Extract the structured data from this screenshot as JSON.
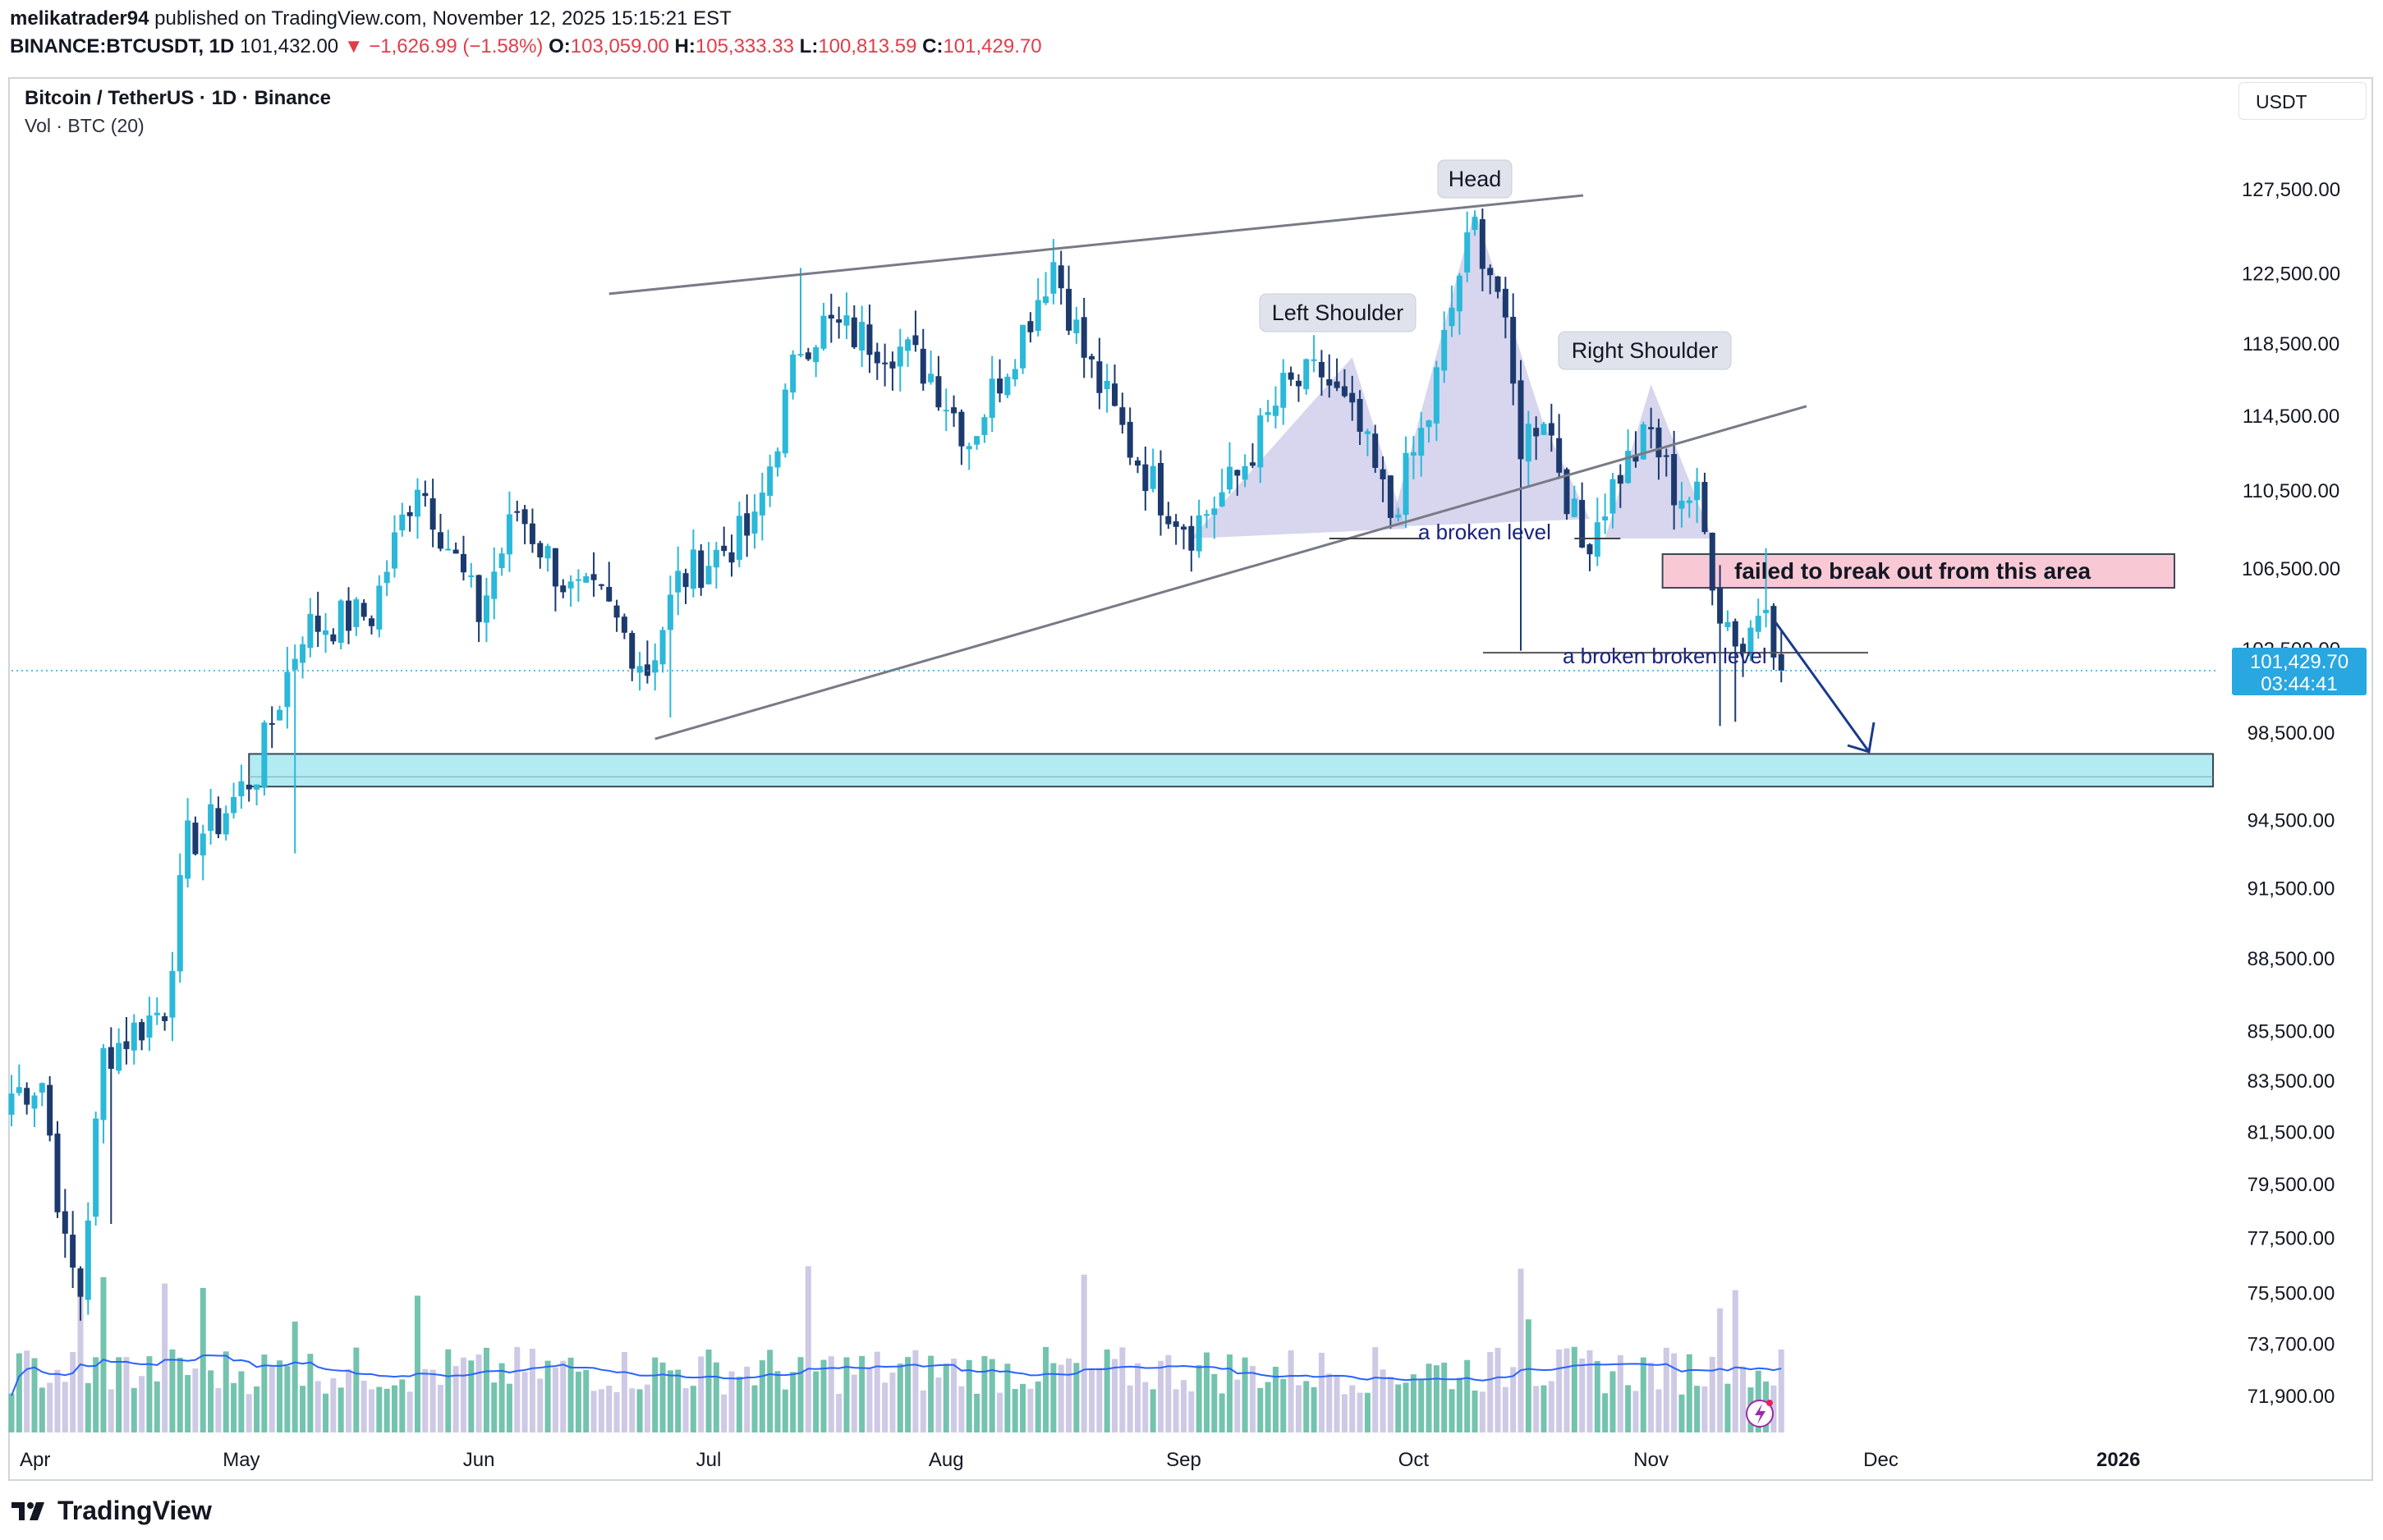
{
  "header": {
    "author": "melikatrader94",
    "published_text": "published on TradingView.com, November 12, 2025 15:15:21 EST",
    "symbol_line": "BINANCE:BTCUSDT, 1D",
    "last": "101,432.00",
    "change_arrow": "▼",
    "change": "−1,626.99 (−1.58%)",
    "o_label": "O:",
    "o_value": "103,059.00",
    "h_label": "H:",
    "h_value": "105,333.33",
    "l_label": "L:",
    "l_value": "100,813.59",
    "c_label": "C:",
    "c_value": "101,429.70"
  },
  "legend": {
    "title": "Bitcoin / TetherUS · 1D · Binance",
    "volume": "Vol · BTC (20)"
  },
  "currency": "USDT",
  "footer": {
    "brand": "TradingView"
  },
  "colors": {
    "up": "#2bb8d9",
    "down": "#1c3a6e",
    "vol_up": "#5cb8a0",
    "vol_down": "#c6bfe0",
    "vol_ma": "#2962ff",
    "pattern_fill": "#b7b4e0",
    "support_zone": "#b2ebf2",
    "resistance_zone": "#f8c9d5",
    "trend_line": "#787b86",
    "price_tag": "#29a7e0",
    "arrow": "#1a3a8f"
  },
  "chart_data": {
    "type": "candlestick",
    "title": "Bitcoin / TetherUS · 1D · Binance",
    "price_axis": {
      "currency": "USDT",
      "tick_labels": [
        "127,500.00",
        "122,500.00",
        "118,500.00",
        "114,500.00",
        "110,500.00",
        "106,500.00",
        "102,500.00",
        "98,500.00",
        "94,500.00",
        "91,500.00",
        "88,500.00",
        "85,500.00",
        "83,500.00",
        "81,500.00",
        "79,500.00",
        "77,500.00",
        "75,500.00",
        "73,700.00",
        "71,900.00"
      ],
      "tick_values": [
        127500,
        122500,
        118500,
        114500,
        110500,
        106500,
        102500,
        98500,
        94500,
        91500,
        88500,
        85500,
        83500,
        81500,
        79500,
        77500,
        75500,
        73700,
        71900
      ],
      "scale": "log"
    },
    "time_axis": {
      "labels": [
        "Apr",
        "May",
        "Jun",
        "Jul",
        "Aug",
        "Sep",
        "Oct",
        "Nov",
        "Dec",
        "2026"
      ],
      "day_index": [
        0,
        30,
        61,
        91,
        122,
        153,
        183,
        214,
        244,
        275
      ],
      "bold": [
        "2026"
      ]
    },
    "last_price": {
      "value": 101429.7,
      "label": "101,429.70",
      "countdown": "03:44:41"
    },
    "candles_anchor": [
      {
        "day": 0,
        "close": 83000
      },
      {
        "day": 4,
        "close": 83500
      },
      {
        "day": 7,
        "close": 77000
      },
      {
        "day": 9,
        "close": 75500
      },
      {
        "day": 12,
        "close": 84500
      },
      {
        "day": 20,
        "close": 86500
      },
      {
        "day": 23,
        "close": 93500
      },
      {
        "day": 27,
        "close": 94500
      },
      {
        "day": 32,
        "close": 96800
      },
      {
        "day": 38,
        "close": 103500
      },
      {
        "day": 47,
        "close": 104200
      },
      {
        "day": 53,
        "close": 111200
      },
      {
        "day": 58,
        "close": 106800
      },
      {
        "day": 61,
        "close": 104200
      },
      {
        "day": 66,
        "close": 109500
      },
      {
        "day": 73,
        "close": 105200
      },
      {
        "day": 77,
        "close": 104800
      },
      {
        "day": 83,
        "close": 101500
      },
      {
        "day": 87,
        "close": 105800
      },
      {
        "day": 93,
        "close": 107500
      },
      {
        "day": 97,
        "close": 108500
      },
      {
        "day": 103,
        "close": 118500
      },
      {
        "day": 106,
        "close": 119500
      },
      {
        "day": 112,
        "close": 118700
      },
      {
        "day": 116,
        "close": 118200
      },
      {
        "day": 120,
        "close": 116800
      },
      {
        "day": 125,
        "close": 113200
      },
      {
        "day": 132,
        "close": 119200
      },
      {
        "day": 136,
        "close": 123200
      },
      {
        "day": 140,
        "close": 117800
      },
      {
        "day": 146,
        "close": 112800
      },
      {
        "day": 150,
        "close": 110200
      },
      {
        "day": 154,
        "close": 108500
      },
      {
        "day": 160,
        "close": 111200
      },
      {
        "day": 166,
        "close": 115800
      },
      {
        "day": 171,
        "close": 116800
      },
      {
        "day": 176,
        "close": 113500
      },
      {
        "day": 180,
        "close": 109200
      },
      {
        "day": 185,
        "close": 114500
      },
      {
        "day": 189,
        "close": 122500
      },
      {
        "day": 191,
        "close": 125200
      },
      {
        "day": 194,
        "close": 121500
      },
      {
        "day": 197,
        "close": 113000
      },
      {
        "day": 200,
        "close": 114800
      },
      {
        "day": 205,
        "close": 107500
      },
      {
        "day": 210,
        "close": 111500
      },
      {
        "day": 214,
        "close": 113500
      },
      {
        "day": 217,
        "close": 110500
      },
      {
        "day": 220,
        "close": 110000
      },
      {
        "day": 223,
        "close": 104500
      },
      {
        "day": 226,
        "close": 102500
      },
      {
        "day": 229,
        "close": 105500
      },
      {
        "day": 230,
        "close": 103059
      },
      {
        "day": 231,
        "close": 101430
      }
    ],
    "volume": {
      "indicator": "Vol · BTC (20)",
      "ma_length": 20
    },
    "annotations": {
      "head_label": "Head",
      "left_shoulder_label": "Left Shoulder",
      "right_shoulder_label": "Right Shoulder",
      "broken_level_1": "a broken level",
      "broken_level_2": "a broken broken level",
      "failed_breakout": "failed to break out from this area",
      "support_zone": {
        "from": 96000,
        "to": 97500
      },
      "resistance_zone": {
        "from": 105500,
        "to": 107200
      },
      "neckline_day": [
        155,
        191
      ],
      "neckline_value": 108000,
      "broken_level_2_value": 102300
    }
  }
}
